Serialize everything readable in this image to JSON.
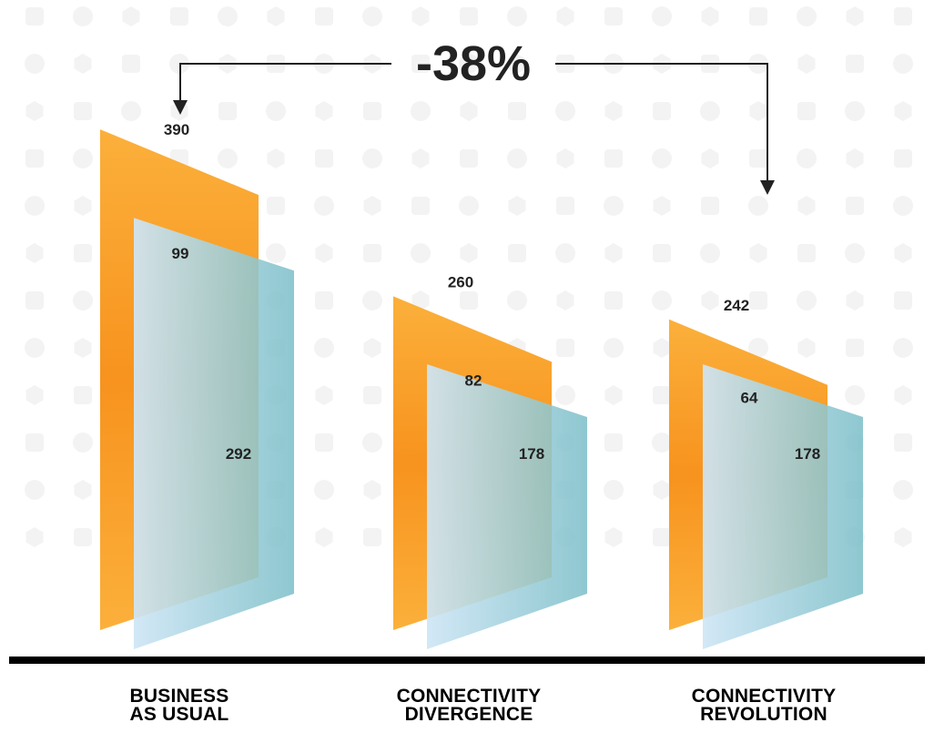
{
  "chart_data": {
    "type": "bar",
    "categories": [
      [
        "BUSINESS",
        "AS USUAL"
      ],
      [
        "CONNECTIVITY",
        "DIVERGENCE"
      ],
      [
        "CONNECTIVITY",
        "REVOLUTION"
      ]
    ],
    "totals": [
      390,
      260,
      242
    ],
    "series": [
      {
        "values": [
          99,
          82,
          64
        ]
      },
      {
        "values": [
          292,
          178,
          178
        ]
      }
    ],
    "annotation": {
      "text": "-38%",
      "from_category": 0,
      "to_category": 2
    },
    "colors": {
      "front_top": "#fbb03b",
      "front_mid": "#f7931e",
      "front_bottom": "#fbb03b",
      "back_light": "#cfe6f6",
      "back_teal": "#7bbec8",
      "baseline": "#000000",
      "pattern": "#f3f3f3"
    },
    "grid": false,
    "legend": "none"
  }
}
